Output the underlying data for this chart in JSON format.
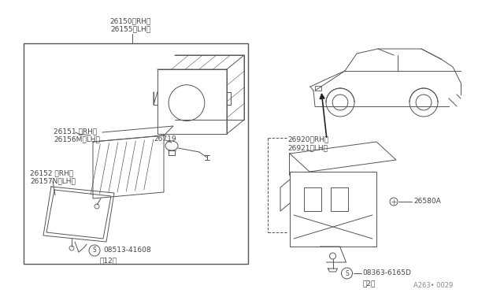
{
  "bg_color": "#ffffff",
  "line_color": "#555555",
  "text_color": "#444444",
  "fig_width": 6.4,
  "fig_height": 3.72,
  "dpi": 100,
  "labels": {
    "26150rh": "26150（RH）",
    "26155lh": "26155（LH）",
    "26151rh": "26151 （RH）",
    "26156mlh": "26156M（LH）",
    "26152rh": "26152 （RH）",
    "26157nlh": "26157N（LH）",
    "26719": "26719",
    "08513": "08513-41608",
    "08513_qty": "（12）",
    "26920rh": "26920（RH）",
    "26921lh": "26921（LH）",
    "26580a": "26580A",
    "08363": "08363-6165D",
    "08363_qty": "（2）",
    "watermark": "A263• 0029"
  }
}
